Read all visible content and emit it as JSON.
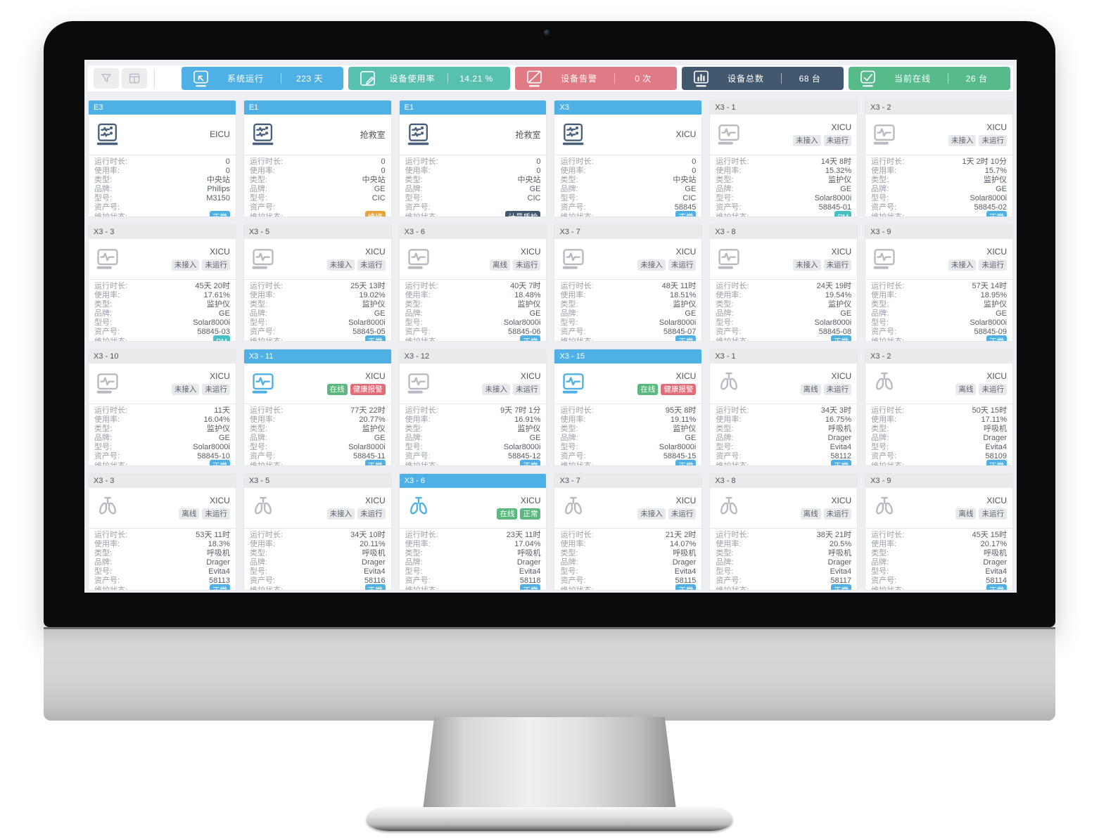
{
  "toolbar": {
    "left_buttons": [
      {
        "name": "filter",
        "icon": "filter-icon"
      },
      {
        "name": "layout",
        "icon": "layout-icon"
      }
    ],
    "stats": [
      {
        "label": "系统运行",
        "value": "223 天",
        "color": "#4fb0e6",
        "icon": "cursor-monitor-icon"
      },
      {
        "label": "设备使用率",
        "value": "14.21 %",
        "color": "#57c0af",
        "icon": "edit-icon"
      },
      {
        "label": "设备告警",
        "value": "0 次",
        "color": "#e07a84",
        "icon": "alert-monitor-icon"
      },
      {
        "label": "设备总数",
        "value": "68 台",
        "color": "#42586e",
        "icon": "bar-chart-monitor-icon"
      },
      {
        "label": "当前在线",
        "value": "26 台",
        "color": "#57ba8b",
        "icon": "check-monitor-icon"
      }
    ]
  },
  "field_labels": {
    "runtime": "运行时长:",
    "usage": "使用率:",
    "type": "类型:",
    "brand": "品牌:",
    "model": "型号:",
    "asset": "资产号:",
    "maintenance": "维护状态:"
  },
  "colors": {
    "badge": {
      "gray": {
        "bg": "#e7e9ec",
        "fg": "#5c6268"
      },
      "green": {
        "bg": "#5cb87f",
        "fg": "#ffffff"
      },
      "red": {
        "bg": "#e06e78",
        "fg": "#ffffff"
      },
      "blue": {
        "bg": "#4fb0e6",
        "fg": "#ffffff"
      },
      "orange": {
        "bg": "#e8a23c",
        "fg": "#ffffff"
      },
      "navy": {
        "bg": "#42586e",
        "fg": "#ffffff"
      },
      "teal": {
        "bg": "#49c0c4",
        "fg": "#ffffff"
      }
    },
    "icon": {
      "central": "#49607a",
      "offline": "#b7bbc1",
      "online": "#4fb0e6"
    }
  },
  "cards": [
    {
      "id": "E3",
      "highlight": true,
      "icon": "central",
      "location": "EICU",
      "badges": [],
      "runtime": "0",
      "usage": "0",
      "type": "中央站",
      "brand": "Philips",
      "model": "M3150",
      "asset": "",
      "maintenance": {
        "text": "正常",
        "style": "blue"
      }
    },
    {
      "id": "E1",
      "highlight": true,
      "icon": "central",
      "location": "抢救室",
      "badges": [],
      "runtime": "0",
      "usage": "0",
      "type": "中央站",
      "brand": "GE",
      "model": "CIC",
      "asset": "",
      "maintenance": {
        "text": "维修",
        "style": "orange"
      }
    },
    {
      "id": "E1",
      "highlight": true,
      "icon": "central",
      "location": "抢救室",
      "badges": [],
      "runtime": "0",
      "usage": "0",
      "type": "中央站",
      "brand": "GE",
      "model": "CIC",
      "asset": "",
      "maintenance": {
        "text": "计量质检",
        "style": "navy"
      }
    },
    {
      "id": "X3",
      "highlight": true,
      "icon": "central",
      "location": "XICU",
      "badges": [],
      "runtime": "0",
      "usage": "0",
      "type": "中央站",
      "brand": "GE",
      "model": "CIC",
      "asset": "58845",
      "maintenance": {
        "text": "正常",
        "style": "blue"
      }
    },
    {
      "id": "X3 - 1",
      "highlight": false,
      "icon": "monitor",
      "location": "XICU",
      "badges": [
        {
          "text": "未接入",
          "style": "gray"
        },
        {
          "text": "未运行",
          "style": "gray"
        }
      ],
      "runtime": "14天 8时",
      "usage": "15.32%",
      "type": "监护仪",
      "brand": "GE",
      "model": "Solar8000i",
      "asset": "58845-01",
      "maintenance": {
        "text": "PM",
        "style": "teal"
      }
    },
    {
      "id": "X3 - 2",
      "highlight": false,
      "icon": "monitor",
      "location": "XICU",
      "badges": [
        {
          "text": "未接入",
          "style": "gray"
        },
        {
          "text": "未运行",
          "style": "gray"
        }
      ],
      "runtime": "1天 2时 10分",
      "usage": "15.7%",
      "type": "监护仪",
      "brand": "GE",
      "model": "Solar8000i",
      "asset": "58845-02",
      "maintenance": {
        "text": "正常",
        "style": "blue"
      }
    },
    {
      "id": "X3 - 3",
      "highlight": false,
      "icon": "monitor",
      "location": "XICU",
      "badges": [
        {
          "text": "未接入",
          "style": "gray"
        },
        {
          "text": "未运行",
          "style": "gray"
        }
      ],
      "runtime": "45天 20时",
      "usage": "17.61%",
      "type": "监护仪",
      "brand": "GE",
      "model": "Solar8000i",
      "asset": "58845-03",
      "maintenance": {
        "text": "PM",
        "style": "teal"
      }
    },
    {
      "id": "X3 - 5",
      "highlight": false,
      "icon": "monitor",
      "location": "XICU",
      "badges": [
        {
          "text": "未接入",
          "style": "gray"
        },
        {
          "text": "未运行",
          "style": "gray"
        }
      ],
      "runtime": "25天 13时",
      "usage": "19.02%",
      "type": "监护仪",
      "brand": "GE",
      "model": "Solar8000i",
      "asset": "58845-05",
      "maintenance": {
        "text": "正常",
        "style": "blue"
      }
    },
    {
      "id": "X3 - 6",
      "highlight": false,
      "icon": "monitor",
      "location": "XICU",
      "badges": [
        {
          "text": "离线",
          "style": "gray"
        },
        {
          "text": "未运行",
          "style": "gray"
        }
      ],
      "runtime": "40天 7时",
      "usage": "18.48%",
      "type": "监护仪",
      "brand": "GE",
      "model": "Solar8000i",
      "asset": "58845-06",
      "maintenance": {
        "text": "正常",
        "style": "blue"
      }
    },
    {
      "id": "X3 - 7",
      "highlight": false,
      "icon": "monitor",
      "location": "XICU",
      "badges": [
        {
          "text": "未接入",
          "style": "gray"
        },
        {
          "text": "未运行",
          "style": "gray"
        }
      ],
      "runtime": "48天 11时",
      "usage": "18.51%",
      "type": "监护仪",
      "brand": "GE",
      "model": "Solar8000i",
      "asset": "58845-07",
      "maintenance": {
        "text": "正常",
        "style": "blue"
      }
    },
    {
      "id": "X3 - 8",
      "highlight": false,
      "icon": "monitor",
      "location": "XICU",
      "badges": [
        {
          "text": "未接入",
          "style": "gray"
        },
        {
          "text": "未运行",
          "style": "gray"
        }
      ],
      "runtime": "24天 19时",
      "usage": "19.54%",
      "type": "监护仪",
      "brand": "GE",
      "model": "Solar8000i",
      "asset": "58845-08",
      "maintenance": {
        "text": "正常",
        "style": "blue"
      }
    },
    {
      "id": "X3 - 9",
      "highlight": false,
      "icon": "monitor",
      "location": "XICU",
      "badges": [
        {
          "text": "未接入",
          "style": "gray"
        },
        {
          "text": "未运行",
          "style": "gray"
        }
      ],
      "runtime": "57天 14时",
      "usage": "18.95%",
      "type": "监护仪",
      "brand": "GE",
      "model": "Solar8000i",
      "asset": "58845-09",
      "maintenance": {
        "text": "正常",
        "style": "blue"
      }
    },
    {
      "id": "X3 - 10",
      "highlight": false,
      "icon": "monitor",
      "location": "XICU",
      "badges": [
        {
          "text": "未接入",
          "style": "gray"
        },
        {
          "text": "未运行",
          "style": "gray"
        }
      ],
      "runtime": "11天",
      "usage": "16.04%",
      "type": "监护仪",
      "brand": "GE",
      "model": "Solar8000i",
      "asset": "58845-10",
      "maintenance": {
        "text": "正常",
        "style": "blue"
      }
    },
    {
      "id": "X3 - 11",
      "highlight": true,
      "icon": "monitor-online",
      "location": "XICU",
      "badges": [
        {
          "text": "在线",
          "style": "green"
        },
        {
          "text": "健康报警",
          "style": "red"
        }
      ],
      "runtime": "77天 22时",
      "usage": "20.77%",
      "type": "监护仪",
      "brand": "GE",
      "model": "Solar8000i",
      "asset": "58845-11",
      "maintenance": {
        "text": "正常",
        "style": "blue"
      }
    },
    {
      "id": "X3 - 12",
      "highlight": false,
      "icon": "monitor",
      "location": "XICU",
      "badges": [
        {
          "text": "未接入",
          "style": "gray"
        },
        {
          "text": "未运行",
          "style": "gray"
        }
      ],
      "runtime": "9天 7时 1分",
      "usage": "16.91%",
      "type": "监护仪",
      "brand": "GE",
      "model": "Solar8000i",
      "asset": "58845-12",
      "maintenance": {
        "text": "正常",
        "style": "blue"
      }
    },
    {
      "id": "X3 - 15",
      "highlight": true,
      "icon": "monitor-online",
      "location": "XICU",
      "badges": [
        {
          "text": "在线",
          "style": "green"
        },
        {
          "text": "健康报警",
          "style": "red"
        }
      ],
      "runtime": "95天 8时",
      "usage": "19.11%",
      "type": "监护仪",
      "brand": "GE",
      "model": "Solar8000i",
      "asset": "58845-15",
      "maintenance": {
        "text": "正常",
        "style": "blue"
      }
    },
    {
      "id": "X3 - 1",
      "highlight": false,
      "icon": "lungs",
      "location": "XICU",
      "badges": [
        {
          "text": "离线",
          "style": "gray"
        },
        {
          "text": "未运行",
          "style": "gray"
        }
      ],
      "runtime": "34天 3时",
      "usage": "16.75%",
      "type": "呼吸机",
      "brand": "Drager",
      "model": "Evita4",
      "asset": "58112",
      "maintenance": {
        "text": "正常",
        "style": "blue"
      }
    },
    {
      "id": "X3 - 2",
      "highlight": false,
      "icon": "lungs",
      "location": "XICU",
      "badges": [
        {
          "text": "离线",
          "style": "gray"
        },
        {
          "text": "未运行",
          "style": "gray"
        }
      ],
      "runtime": "50天 15时",
      "usage": "17.11%",
      "type": "呼吸机",
      "brand": "Drager",
      "model": "Evita4",
      "asset": "58109",
      "maintenance": {
        "text": "正常",
        "style": "blue"
      }
    },
    {
      "id": "X3 - 3",
      "highlight": false,
      "icon": "lungs",
      "location": "XICU",
      "badges": [
        {
          "text": "离线",
          "style": "gray"
        },
        {
          "text": "未运行",
          "style": "gray"
        }
      ],
      "runtime": "53天 11时",
      "usage": "18.3%",
      "type": "呼吸机",
      "brand": "Drager",
      "model": "Evita4",
      "asset": "58113",
      "maintenance": {
        "text": "正常",
        "style": "blue"
      }
    },
    {
      "id": "X3 - 5",
      "highlight": false,
      "icon": "lungs",
      "location": "XICU",
      "badges": [
        {
          "text": "未接入",
          "style": "gray"
        },
        {
          "text": "未运行",
          "style": "gray"
        }
      ],
      "runtime": "34天 10时",
      "usage": "20.11%",
      "type": "呼吸机",
      "brand": "Drager",
      "model": "Evita4",
      "asset": "58116",
      "maintenance": {
        "text": "正常",
        "style": "blue"
      }
    },
    {
      "id": "X3 - 6",
      "highlight": true,
      "icon": "lungs-online",
      "location": "XICU",
      "badges": [
        {
          "text": "在线",
          "style": "green"
        },
        {
          "text": "正常",
          "style": "green"
        }
      ],
      "runtime": "23天 11时",
      "usage": "17.04%",
      "type": "呼吸机",
      "brand": "Drager",
      "model": "Evita4",
      "asset": "58118",
      "maintenance": {
        "text": "正常",
        "style": "blue"
      }
    },
    {
      "id": "X3 - 7",
      "highlight": false,
      "icon": "lungs",
      "location": "XICU",
      "badges": [
        {
          "text": "未接入",
          "style": "gray"
        },
        {
          "text": "未运行",
          "style": "gray"
        }
      ],
      "runtime": "21天 2时",
      "usage": "14.07%",
      "type": "呼吸机",
      "brand": "Drager",
      "model": "Evita4",
      "asset": "58115",
      "maintenance": {
        "text": "正常",
        "style": "blue"
      }
    },
    {
      "id": "X3 - 8",
      "highlight": false,
      "icon": "lungs",
      "location": "XICU",
      "badges": [
        {
          "text": "离线",
          "style": "gray"
        },
        {
          "text": "未运行",
          "style": "gray"
        }
      ],
      "runtime": "38天 21时",
      "usage": "20.5%",
      "type": "呼吸机",
      "brand": "Drager",
      "model": "Evita4",
      "asset": "58117",
      "maintenance": {
        "text": "正常",
        "style": "blue"
      }
    },
    {
      "id": "X3 - 9",
      "highlight": false,
      "icon": "lungs",
      "location": "XICU",
      "badges": [
        {
          "text": "离线",
          "style": "gray"
        },
        {
          "text": "未运行",
          "style": "gray"
        }
      ],
      "runtime": "45天 15时",
      "usage": "20.17%",
      "type": "呼吸机",
      "brand": "Drager",
      "model": "Evita4",
      "asset": "58114",
      "maintenance": {
        "text": "正常",
        "style": "blue"
      }
    }
  ]
}
